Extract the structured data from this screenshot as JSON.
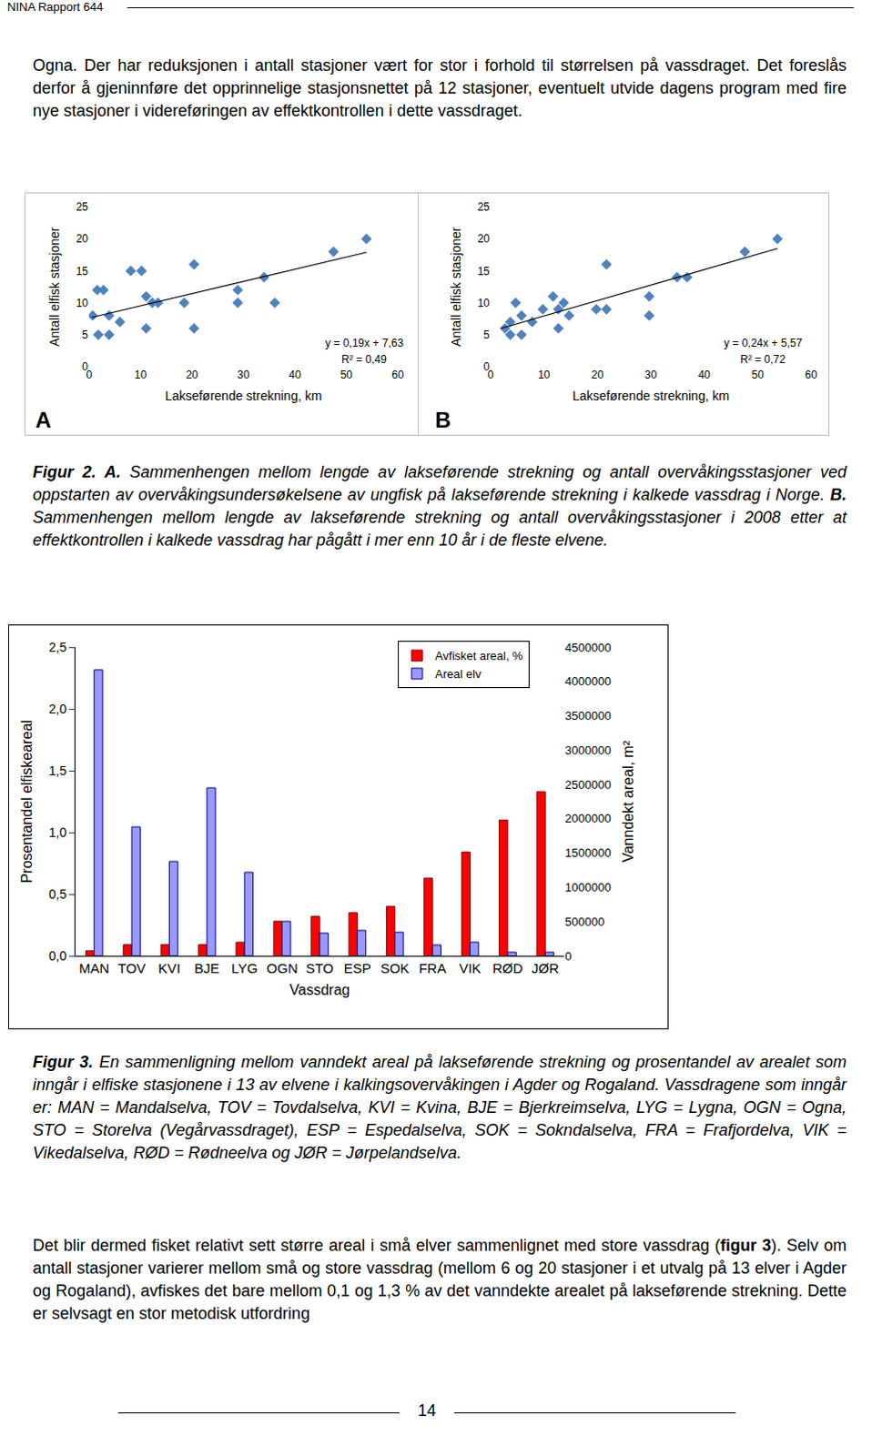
{
  "header": "NINA Rapport 644",
  "intro": [
    {
      "text": "Ogna. Der har reduksjonen i antall stasjoner vært for stor i forhold til størrelsen på vassdraget. Det foreslås derfor å gjeninnføre det opprinnelige stasjonsnettet på 12 stasjoner, eventuelt utvide dagens program med fire nye stasjoner i videreføringen av effektkontrollen i dette vassdraget."
    }
  ],
  "chart_data": [
    {
      "type": "scatter",
      "panel_label": "A",
      "x_label": "Lakseførende strekning, km",
      "y_label": "Antall elfisk stasjoner",
      "x": [
        0.7,
        1.6,
        2.8,
        1.8,
        3.9,
        3.9,
        6.0,
        8.1,
        10.2,
        11.1,
        11.1,
        12.3,
        13.4,
        18.5,
        20.4,
        20.4,
        28.9,
        28.9,
        34.0,
        36.1,
        47.5,
        53.9
      ],
      "values": [
        8,
        12,
        12,
        5,
        8,
        5,
        7,
        15,
        15,
        11,
        6,
        10,
        10,
        10,
        16,
        6,
        12,
        10,
        14,
        10,
        18,
        20
      ],
      "color": "#4f81bd",
      "marker": "diamond",
      "trendline": {
        "x": [
          0.5,
          53.9
        ],
        "values": [
          7.7,
          17.9
        ],
        "color": "#000000"
      },
      "annotations": [
        "y = 0,19x + 7,63",
        "R² = 0,49"
      ],
      "xlim": [
        0,
        60
      ],
      "xticks": [
        0,
        10,
        20,
        30,
        40,
        50,
        60
      ],
      "ylim": [
        0,
        25
      ],
      "yticks": [
        0,
        5,
        10,
        15,
        20,
        25
      ],
      "grid": false
    },
    {
      "type": "scatter",
      "panel_label": "B",
      "x_label": "Lakseførende strekning, km",
      "y_label": "Antall elfisk stasjoner",
      "x": [
        2.7,
        3.7,
        3.7,
        4.7,
        5.8,
        5.8,
        7.8,
        9.8,
        11.7,
        12.7,
        12.7,
        13.7,
        14.7,
        19.8,
        21.7,
        21.7,
        29.7,
        29.7,
        34.9,
        36.8,
        47.6,
        53.7
      ],
      "values": [
        6,
        7,
        5,
        10,
        8,
        5,
        7,
        9,
        11,
        9,
        6,
        10,
        8,
        9,
        9,
        16,
        11,
        8,
        14,
        14,
        18,
        20
      ],
      "color": "#4f81bd",
      "marker": "diamond",
      "trendline": {
        "x": [
          2.0,
          53.7
        ],
        "values": [
          6.0,
          18.5
        ],
        "color": "#000000"
      },
      "annotations": [
        "y = 0,24x + 5,57",
        "R² = 0,72"
      ],
      "xlim": [
        0,
        60
      ],
      "xticks": [
        0,
        10,
        20,
        30,
        40,
        50,
        60
      ],
      "ylim": [
        0,
        25
      ],
      "yticks": [
        0,
        5,
        10,
        15,
        20,
        25
      ],
      "grid": false
    },
    {
      "type": "bar",
      "x_label": "Vassdrag",
      "y_label": "Prosentandel elfiskeareal",
      "y2_label": "Vanndekt areal, m²",
      "categories": [
        "MAN",
        "TOV",
        "KVI",
        "BJE",
        "LYG",
        "OGN",
        "STO",
        "ESP",
        "SOK",
        "FRA",
        "VIK",
        "RØD",
        "JØR"
      ],
      "series": [
        {
          "name": "Avfisket areal, %",
          "color": "#ff0000",
          "values": [
            0.04,
            0.09,
            0.09,
            0.09,
            0.11,
            0.28,
            0.32,
            0.35,
            0.4,
            0.63,
            0.84,
            1.1,
            1.33
          ]
        },
        {
          "name": "Areal elv",
          "color": "#9999ff",
          "axis": "y2",
          "values": [
            4170000,
            1880000,
            1376000,
            2449000,
            1218000,
            503000,
            331000,
            371000,
            344000,
            159000,
            199000,
            53000,
            53000
          ]
        }
      ],
      "ylim": [
        0,
        2.5
      ],
      "yticks": [
        {
          "value": 0,
          "label": "0,0"
        },
        {
          "value": 0.5,
          "label": "0,5"
        },
        {
          "value": 1,
          "label": "1,0"
        },
        {
          "value": 1.5,
          "label": "1,5"
        },
        {
          "value": 2,
          "label": "2,0"
        },
        {
          "value": 2.5,
          "label": "2,5"
        }
      ],
      "y2lim": [
        0,
        4500000
      ],
      "y2ticks": [
        0,
        500000,
        1000000,
        1500000,
        2000000,
        2500000,
        3000000,
        3500000,
        4000000,
        4500000
      ],
      "legend": "top",
      "grid": false
    }
  ],
  "caption_figure2": [
    {
      "text": "Figur 2. A.",
      "bold": true
    },
    {
      "text": " Sammenhengen mellom lengde av lakseførende strekning og antall overvåkingsstasjoner ved oppstarten av overvåkingsundersøkelsene av ungfisk på lakseførende strekning i kalkede vassdrag i Norge. "
    },
    {
      "text": "B.",
      "bold": true
    },
    {
      "text": " Sammenhengen mellom lengde av lakseførende strekning og antall overvåkingsstasjoner i 2008 etter at effektkontrollen i kalkede vassdrag har pågått i mer enn 10 år i de fleste elvene."
    }
  ],
  "caption_figure3": [
    {
      "text": "Figur 3.",
      "bold": true
    },
    {
      "text": " En sammenligning mellom vanndekt areal på lakseførende strekning og prosentandel av arealet som inngår i elfiske stasjonene i 13 av elvene i kalkingsovervåkingen i Agder og Rogaland. Vassdragene som inngår er: MAN = Mandalselva, TOV = Tovdalselva, KVI = Kvina, BJE = Bjerkreimselva, LYG = Lygna, OGN = Ogna, STO = Storelva (Vegårvassdraget), ESP = Espedalselva, SOK = Sokndalselva, FRA = Frafjordelva, VIK = Vikedalselva, RØD = Rødneelva og JØR = Jørpelandselva."
    }
  ],
  "closing": [
    {
      "text": "Det blir dermed fisket relativt sett større areal i små elver sammenlignet med store vassdrag ("
    },
    {
      "text": "figur 3",
      "bold": true
    },
    {
      "text": "). Selv om antall stasjoner varierer mellom små og store vassdrag (mellom 6 og 20 stasjoner i et utvalg på 13 elver i Agder og Rogaland), avfiskes det bare mellom 0,1 og 1,3 % av det vanndekte arealet på lakseførende strekning. Dette er selvsagt en stor metodisk utfordring"
    }
  ],
  "page_number": "14"
}
